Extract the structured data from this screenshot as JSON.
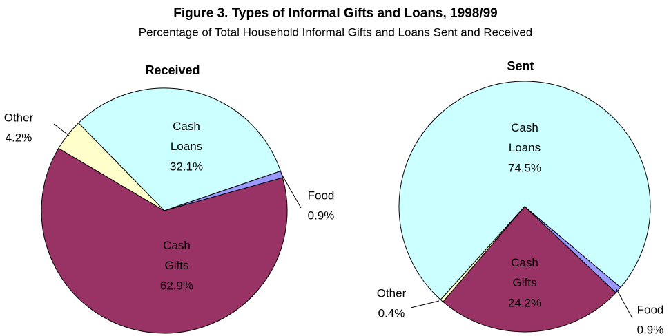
{
  "title": "Figure 3. Types of Informal Gifts and Loans, 1998/99",
  "subtitle": "Percentage of Total Household Informal Gifts and Loans Sent and Received",
  "chart_data": [
    {
      "type": "pie",
      "title": "Received",
      "categories": [
        "Cash Loans",
        "Food",
        "Cash Gifts",
        "Other"
      ],
      "values": [
        32.1,
        0.9,
        62.9,
        4.2
      ],
      "value_labels": [
        "32.1%",
        "0.9%",
        "62.9%",
        "4.2%"
      ],
      "colors": [
        "#ccffff",
        "#9999ff",
        "#993366",
        "#ffffcc"
      ]
    },
    {
      "type": "pie",
      "title": "Sent",
      "categories": [
        "Cash Loans",
        "Food",
        "Cash Gifts",
        "Other"
      ],
      "values": [
        74.5,
        0.9,
        24.2,
        0.4
      ],
      "value_labels": [
        "74.5%",
        "0.9%",
        "24.2%",
        "0.4%"
      ],
      "colors": [
        "#ccffff",
        "#9999ff",
        "#993366",
        "#ffffcc"
      ]
    }
  ]
}
